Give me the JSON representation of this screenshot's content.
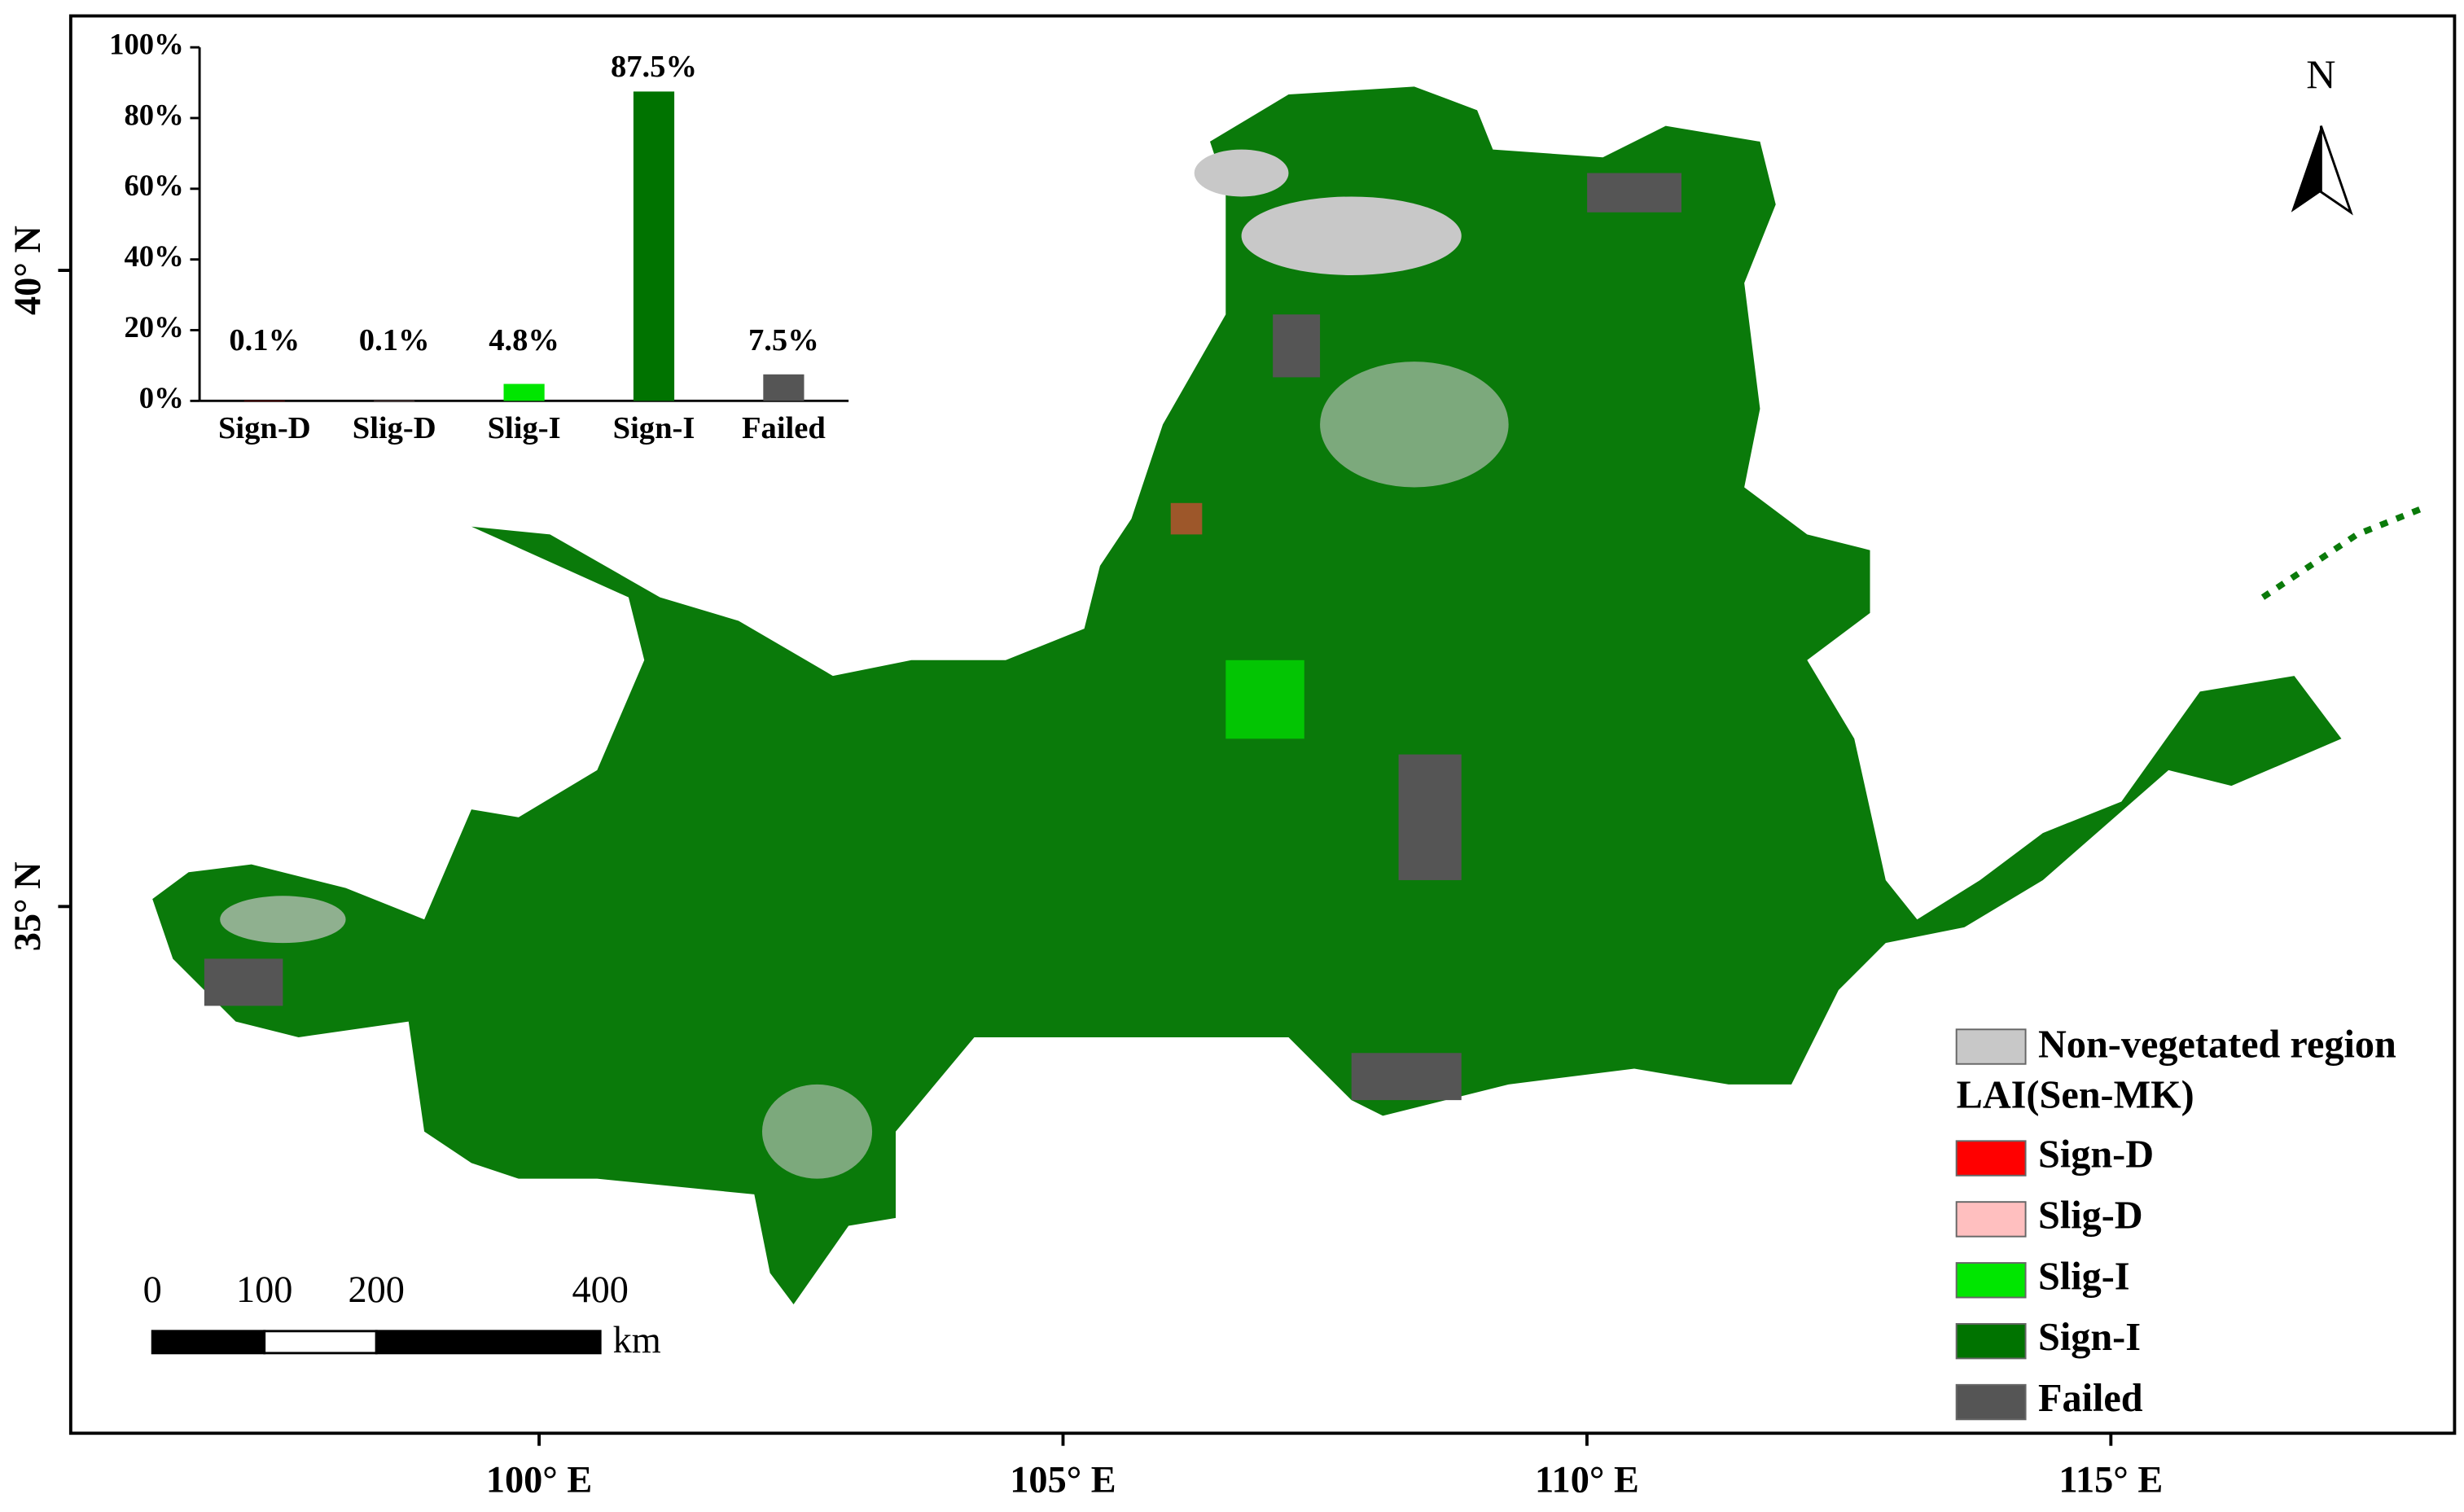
{
  "chart_data": {
    "type": "bar",
    "categories": [
      "Sign-D",
      "Slig-D",
      "Slig-I",
      "Sign-I",
      "Failed"
    ],
    "values": [
      0.1,
      0.1,
      4.8,
      87.5,
      7.5
    ],
    "value_labels": [
      "0.1%",
      "0.1%",
      "4.8%",
      "87.5%",
      "7.5%"
    ],
    "colors": [
      "#ff0000",
      "#ffbfbf",
      "#00e600",
      "#007300",
      "#555555"
    ],
    "ylim": [
      0,
      100
    ],
    "yticks": [
      {
        "value": 0,
        "label": "0%"
      },
      {
        "value": 20,
        "label": "20%"
      },
      {
        "value": 40,
        "label": "40%"
      },
      {
        "value": 60,
        "label": "60%"
      },
      {
        "value": 80,
        "label": "80%"
      },
      {
        "value": 100,
        "label": "100%"
      }
    ]
  },
  "map": {
    "xlim": [
      95.53,
      118.28
    ],
    "ylim": [
      30.86,
      42.0
    ],
    "xticks": [
      {
        "value": 100,
        "label": "100° E"
      },
      {
        "value": 105,
        "label": "105° E"
      },
      {
        "value": 110,
        "label": "110° E"
      },
      {
        "value": 115,
        "label": "115° E"
      }
    ],
    "yticks": [
      {
        "value": 35,
        "label": "35° N"
      },
      {
        "value": 40,
        "label": "40° N"
      }
    ],
    "north": "N",
    "scale_bar": {
      "ticks": [
        0,
        100,
        200,
        400
      ],
      "unit": "km"
    },
    "legend": {
      "non_vegetated": "Non-vegetated region",
      "non_vegetated_color": "#c8c8c8",
      "title": "LAI(Sen-MK)"
    }
  }
}
